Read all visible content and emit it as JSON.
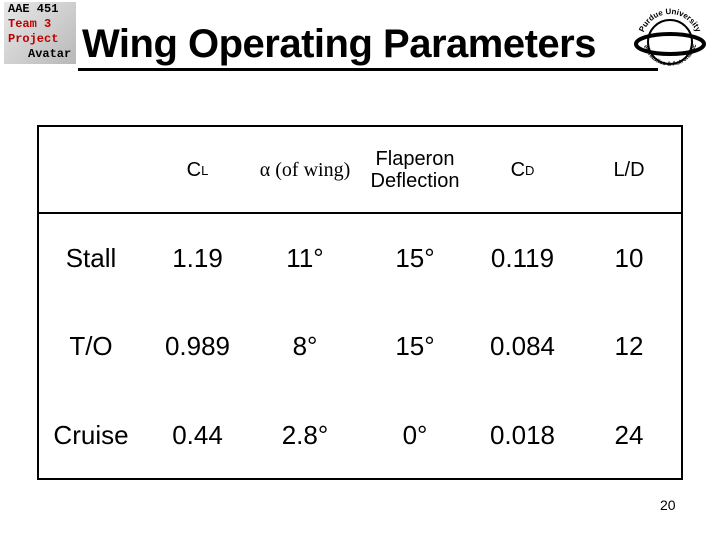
{
  "logo": {
    "lines": [
      "AAE 451",
      "Team 3",
      "Project",
      "Avatar"
    ]
  },
  "title": "Wing Operating Parameters",
  "badge": {
    "top": "Purdue University",
    "bottom": "Aeronautics & Astronautics"
  },
  "table": {
    "header": [
      {
        "text": "C",
        "sub": "L"
      },
      {
        "text": "α (of wing)"
      },
      {
        "text": "Flaperon Deflection"
      },
      {
        "text": "C",
        "sub": "D"
      },
      {
        "text": "L/D"
      }
    ],
    "rows": [
      [
        "Stall",
        "1.19",
        "11°",
        "15°",
        "0.119",
        "10"
      ],
      [
        "T/O",
        "0.989",
        "8°",
        "15°",
        "0.084",
        "12"
      ],
      [
        "Cruise",
        "0.44",
        "2.8°",
        "0°",
        "0.018",
        "24"
      ]
    ]
  },
  "page_number": "20"
}
